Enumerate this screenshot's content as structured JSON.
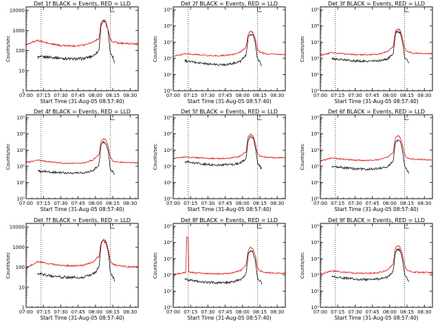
{
  "chart_data": [
    {
      "type": "line",
      "panel": "1f",
      "title": "Det 1f BLACK = Events, RED = LLD",
      "xlabel": "Start Time (31-Aug-05 08:57:40)",
      "ylabel": "Counts/sec",
      "x_tick_labels": [
        "07:00",
        "07:15",
        "07:30",
        "07:45",
        "08:00",
        "08:15",
        "08:30"
      ],
      "y_tick_labels": [
        "1",
        "10",
        "100",
        "1000",
        "10000"
      ],
      "xlim": [
        "07:00",
        "08:37"
      ],
      "ylim": [
        1,
        15000
      ],
      "y_scale": "log",
      "event_markers": [
        "07:13",
        "08:13"
      ],
      "series": [
        {
          "color": "#000000",
          "x": [
            "07:10",
            "07:20",
            "07:30",
            "07:40",
            "07:50",
            "07:58",
            "08:03",
            "08:05",
            "08:07",
            "08:09",
            "08:11",
            "08:13",
            "08:15",
            "08:17"
          ],
          "values": [
            47,
            48,
            42,
            38,
            40,
            55,
            100,
            2200,
            2900,
            2400,
            900,
            70,
            50,
            20
          ]
        },
        {
          "color": "#e00000",
          "x": [
            "07:00",
            "07:05",
            "07:10",
            "07:20",
            "07:30",
            "07:40",
            "07:50",
            "07:58",
            "08:03",
            "08:05",
            "08:07",
            "08:09",
            "08:11",
            "08:13",
            "08:15",
            "08:20",
            "08:30",
            "08:37"
          ],
          "values": [
            200,
            260,
            320,
            220,
            180,
            170,
            190,
            270,
            400,
            2600,
            3400,
            2800,
            1100,
            350,
            280,
            240,
            220,
            210
          ]
        }
      ]
    },
    {
      "type": "line",
      "panel": "2f",
      "title": "Det 2f BLACK = Events, RED = LLD",
      "xlabel": "Start Time (31-Aug-05 08:57:40)",
      "ylabel": "Counts/sec",
      "x_tick_labels": [
        "07:00",
        "07:15",
        "07:30",
        "07:45",
        "08:00",
        "08:15",
        "08:30"
      ],
      "y_tick_labels": [
        "10⁰",
        "10¹",
        "10²",
        "10³",
        "10⁴",
        "10⁵"
      ],
      "xlim": [
        "07:00",
        "08:37"
      ],
      "ylim": [
        1,
        150000
      ],
      "y_scale": "log",
      "event_markers": [
        "07:13",
        "08:13"
      ],
      "series": [
        {
          "color": "#000000",
          "x": [
            "07:10",
            "07:20",
            "07:30",
            "07:40",
            "07:50",
            "07:58",
            "08:03",
            "08:05",
            "08:07",
            "08:09",
            "08:11",
            "08:13",
            "08:15",
            "08:17"
          ],
          "values": [
            70,
            55,
            45,
            40,
            45,
            65,
            150,
            2500,
            3200,
            2800,
            900,
            80,
            60,
            30
          ]
        },
        {
          "color": "#e00000",
          "x": [
            "07:00",
            "07:05",
            "07:10",
            "07:20",
            "07:30",
            "07:40",
            "07:50",
            "07:58",
            "08:03",
            "08:05",
            "08:07",
            "08:09",
            "08:11",
            "08:13",
            "08:15",
            "08:20",
            "08:30",
            "08:37"
          ],
          "values": [
            140,
            160,
            200,
            170,
            150,
            145,
            160,
            240,
            500,
            3500,
            4800,
            4000,
            1600,
            350,
            240,
            190,
            180,
            175
          ]
        }
      ]
    },
    {
      "type": "line",
      "panel": "3f",
      "title": "Det 3f BLACK = Events, RED = LLD",
      "xlabel": "Start Time (31-Aug-05 08:57:40)",
      "ylabel": "Counts/sec",
      "x_tick_labels": [
        "07:00",
        "07:15",
        "07:30",
        "07:45",
        "08:00",
        "08:15",
        "08:30"
      ],
      "y_tick_labels": [
        "10⁰",
        "10¹",
        "10²",
        "10³",
        "10⁴",
        "10⁵"
      ],
      "xlim": [
        "07:00",
        "08:37"
      ],
      "ylim": [
        1,
        150000
      ],
      "y_scale": "log",
      "event_markers": [
        "07:13",
        "08:13"
      ],
      "series": [
        {
          "color": "#000000",
          "x": [
            "07:10",
            "07:20",
            "07:30",
            "07:40",
            "07:50",
            "07:58",
            "08:03",
            "08:05",
            "08:07",
            "08:09",
            "08:11",
            "08:13",
            "08:15",
            "08:17"
          ],
          "values": [
            95,
            80,
            70,
            65,
            70,
            90,
            180,
            3500,
            4500,
            3900,
            1200,
            100,
            80,
            45
          ]
        },
        {
          "color": "#e00000",
          "x": [
            "07:00",
            "07:05",
            "07:10",
            "07:20",
            "07:30",
            "07:40",
            "07:50",
            "07:58",
            "08:03",
            "08:05",
            "08:07",
            "08:09",
            "08:11",
            "08:13",
            "08:15",
            "08:20",
            "08:30",
            "08:37"
          ],
          "values": [
            160,
            180,
            230,
            190,
            170,
            165,
            180,
            260,
            550,
            4500,
            6500,
            5500,
            2000,
            400,
            260,
            210,
            200,
            195
          ]
        }
      ]
    },
    {
      "type": "line",
      "panel": "4f",
      "title": "Det 4f BLACK = Events, RED = LLD",
      "xlabel": "Start Time (31-Aug-05 08:57:40)",
      "ylabel": "Counts/sec",
      "x_tick_labels": [
        "07:00",
        "07:15",
        "07:30",
        "07:45",
        "08:00",
        "08:15",
        "08:30"
      ],
      "y_tick_labels": [
        "10⁰",
        "10¹",
        "10²",
        "10³",
        "10⁴",
        "10⁵"
      ],
      "xlim": [
        "07:00",
        "08:37"
      ],
      "ylim": [
        1,
        150000
      ],
      "y_scale": "log",
      "event_markers": [
        "07:13",
        "08:13"
      ],
      "series": [
        {
          "color": "#000000",
          "x": [
            "07:10",
            "07:20",
            "07:30",
            "07:40",
            "07:50",
            "07:58",
            "08:03",
            "08:05",
            "08:07",
            "08:09",
            "08:11",
            "08:13",
            "08:15",
            "08:17"
          ],
          "values": [
            50,
            45,
            40,
            38,
            40,
            55,
            120,
            2500,
            3200,
            2700,
            900,
            60,
            45,
            25
          ]
        },
        {
          "color": "#e00000",
          "x": [
            "07:00",
            "07:05",
            "07:10",
            "07:20",
            "07:30",
            "07:40",
            "07:50",
            "07:58",
            "08:03",
            "08:05",
            "08:07",
            "08:09",
            "08:11",
            "08:13",
            "08:15",
            "08:20",
            "08:30",
            "08:37"
          ],
          "values": [
            170,
            200,
            250,
            190,
            160,
            150,
            165,
            250,
            500,
            3800,
            5000,
            4200,
            1600,
            350,
            220,
            180,
            170,
            165
          ]
        }
      ]
    },
    {
      "type": "line",
      "panel": "5f",
      "title": "Det 5f BLACK = Events, RED = LLD",
      "xlabel": "Start Time (31-Aug-05 08:57:40)",
      "ylabel": "Counts/sec",
      "x_tick_labels": [
        "07:00",
        "07:15",
        "07:30",
        "07:45",
        "08:00",
        "08:15",
        "08:30"
      ],
      "y_tick_labels": [
        "10⁰",
        "10¹",
        "10²",
        "10³",
        "10⁴",
        "10⁵"
      ],
      "xlim": [
        "07:00",
        "08:37"
      ],
      "ylim": [
        1,
        150000
      ],
      "y_scale": "log",
      "event_markers": [
        "07:13",
        "08:13"
      ],
      "series": [
        {
          "color": "#000000",
          "x": [
            "07:10",
            "07:20",
            "07:30",
            "07:40",
            "07:50",
            "07:58",
            "08:03",
            "08:05",
            "08:07",
            "08:09",
            "08:11",
            "08:13",
            "08:15",
            "08:17"
          ],
          "values": [
            190,
            150,
            130,
            120,
            125,
            160,
            300,
            5000,
            6500,
            5500,
            1800,
            150,
            100,
            55
          ]
        },
        {
          "color": "#e00000",
          "x": [
            "07:00",
            "07:05",
            "07:10",
            "07:20",
            "07:30",
            "07:40",
            "07:50",
            "07:58",
            "08:03",
            "08:05",
            "08:07",
            "08:09",
            "08:11",
            "08:13",
            "08:15",
            "08:20",
            "08:30",
            "08:37"
          ],
          "values": [
            300,
            330,
            380,
            340,
            310,
            300,
            320,
            420,
            800,
            7000,
            9500,
            8000,
            2500,
            600,
            420,
            360,
            340,
            330
          ]
        }
      ]
    },
    {
      "type": "line",
      "panel": "6f",
      "title": "Det 6f BLACK = Events, RED = LLD",
      "xlabel": "Start Time (31-Aug-05 08:57:40)",
      "ylabel": "Counts/sec",
      "x_tick_labels": [
        "07:00",
        "07:15",
        "07:30",
        "07:45",
        "08:00",
        "08:15",
        "08:30"
      ],
      "y_tick_labels": [
        "10⁰",
        "10¹",
        "10²",
        "10³",
        "10⁴",
        "10⁵"
      ],
      "xlim": [
        "07:00",
        "08:37"
      ],
      "ylim": [
        1,
        150000
      ],
      "y_scale": "log",
      "event_markers": [
        "07:13",
        "08:13"
      ],
      "series": [
        {
          "color": "#000000",
          "x": [
            "07:10",
            "07:20",
            "07:30",
            "07:40",
            "07:50",
            "07:58",
            "08:03",
            "08:05",
            "08:07",
            "08:09",
            "08:11",
            "08:13",
            "08:15",
            "08:17"
          ],
          "values": [
            95,
            80,
            70,
            65,
            72,
            95,
            200,
            3000,
            4000,
            3400,
            1100,
            90,
            60,
            35
          ]
        },
        {
          "color": "#e00000",
          "x": [
            "07:00",
            "07:05",
            "07:10",
            "07:20",
            "07:30",
            "07:40",
            "07:50",
            "07:58",
            "08:03",
            "08:05",
            "08:07",
            "08:09",
            "08:11",
            "08:13",
            "08:15",
            "08:20",
            "08:30",
            "08:37"
          ],
          "values": [
            220,
            260,
            330,
            270,
            240,
            230,
            250,
            360,
            700,
            5500,
            7500,
            6500,
            2200,
            500,
            330,
            280,
            260,
            250
          ]
        }
      ]
    },
    {
      "type": "line",
      "panel": "7f",
      "title": "Det 7f BLACK = Events, RED = LLD",
      "xlabel": "Start Time (31-Aug-05 08:57:40)",
      "ylabel": "Counts/sec",
      "x_tick_labels": [
        "07:00",
        "07:15",
        "07:30",
        "07:45",
        "08:00",
        "08:15",
        "08:30"
      ],
      "y_tick_labels": [
        "1",
        "10",
        "100",
        "1000",
        "10000"
      ],
      "xlim": [
        "07:00",
        "08:37"
      ],
      "ylim": [
        1,
        15000
      ],
      "y_scale": "log",
      "event_markers": [
        "07:13",
        "08:13"
      ],
      "series": [
        {
          "color": "#000000",
          "x": [
            "07:10",
            "07:20",
            "07:30",
            "07:40",
            "07:50",
            "07:58",
            "08:03",
            "08:05",
            "08:07",
            "08:09",
            "08:11",
            "08:13",
            "08:15",
            "08:17"
          ],
          "values": [
            48,
            38,
            32,
            30,
            32,
            45,
            90,
            1600,
            2000,
            1700,
            600,
            50,
            35,
            18
          ]
        },
        {
          "color": "#e00000",
          "x": [
            "07:00",
            "07:05",
            "07:10",
            "07:20",
            "07:30",
            "07:40",
            "07:50",
            "07:58",
            "08:03",
            "08:05",
            "08:07",
            "08:09",
            "08:11",
            "08:13",
            "08:15",
            "08:20",
            "08:30",
            "08:37"
          ],
          "values": [
            90,
            130,
            190,
            150,
            120,
            115,
            125,
            180,
            350,
            1800,
            2300,
            2000,
            800,
            200,
            140,
            115,
            105,
            100
          ]
        }
      ]
    },
    {
      "type": "line",
      "panel": "8f",
      "title": "Det 8f BLACK = Events, RED = LLD",
      "xlabel": "Start Time (31-Aug-05 08:57:40)",
      "ylabel": "Counts/sec",
      "x_tick_labels": [
        "07:00",
        "07:15",
        "07:30",
        "07:45",
        "08:00",
        "08:15",
        "08:30"
      ],
      "y_tick_labels": [
        "10⁰",
        "10¹",
        "10²",
        "10³",
        "10⁴",
        "10⁵"
      ],
      "xlim": [
        "07:00",
        "08:37"
      ],
      "ylim": [
        1,
        150000
      ],
      "y_scale": "log",
      "event_markers": [
        "07:13",
        "08:13"
      ],
      "series": [
        {
          "color": "#000000",
          "x": [
            "07:10",
            "07:20",
            "07:30",
            "07:40",
            "07:50",
            "07:58",
            "08:03",
            "08:05",
            "08:07",
            "08:09",
            "08:11",
            "08:13",
            "08:15",
            "08:17"
          ],
          "values": [
            55,
            40,
            35,
            32,
            35,
            50,
            110,
            2200,
            2900,
            2500,
            800,
            60,
            45,
            25
          ]
        },
        {
          "color": "#e00000",
          "x": [
            "07:00",
            "07:05",
            "07:10",
            "07:11",
            "07:11.5",
            "07:12",
            "07:13",
            "07:13.5",
            "07:20",
            "07:30",
            "07:40",
            "07:50",
            "07:58",
            "08:03",
            "08:05",
            "08:07",
            "08:09",
            "08:11",
            "08:13",
            "08:15",
            "08:20",
            "08:30",
            "08:37"
          ],
          "values": [
            110,
            120,
            140,
            150,
            20000,
            22000,
            20000,
            150,
            130,
            120,
            115,
            125,
            180,
            400,
            3500,
            5000,
            4200,
            1500,
            300,
            180,
            140,
            130,
            125
          ]
        }
      ]
    },
    {
      "type": "line",
      "panel": "9f",
      "title": "Det 9f BLACK = Events, RED = LLD",
      "xlabel": "Start Time (31-Aug-05 08:57:40)",
      "ylabel": "Counts/sec",
      "x_tick_labels": [
        "07:00",
        "07:15",
        "07:30",
        "07:45",
        "08:00",
        "08:15",
        "08:30"
      ],
      "y_tick_labels": [
        "10⁰",
        "10¹",
        "10²",
        "10³",
        "10⁴",
        "10⁵"
      ],
      "xlim": [
        "07:00",
        "08:37"
      ],
      "ylim": [
        1,
        150000
      ],
      "y_scale": "log",
      "event_markers": [
        "07:13",
        "08:13"
      ],
      "series": [
        {
          "color": "#000000",
          "x": [
            "07:10",
            "07:20",
            "07:30",
            "07:40",
            "07:50",
            "07:58",
            "08:03",
            "08:05",
            "08:07",
            "08:09",
            "08:11",
            "08:13",
            "08:15",
            "08:17"
          ],
          "values": [
            80,
            65,
            55,
            52,
            55,
            75,
            160,
            3000,
            4000,
            3400,
            1100,
            90,
            60,
            35
          ]
        },
        {
          "color": "#e00000",
          "x": [
            "07:00",
            "07:05",
            "07:10",
            "07:20",
            "07:30",
            "07:40",
            "07:50",
            "07:58",
            "08:03",
            "08:05",
            "08:07",
            "08:09",
            "08:11",
            "08:13",
            "08:15",
            "08:20",
            "08:30",
            "08:37"
          ],
          "values": [
            120,
            140,
            180,
            150,
            130,
            125,
            135,
            200,
            450,
            4500,
            6500,
            5500,
            1800,
            350,
            200,
            150,
            140,
            135
          ]
        }
      ]
    }
  ]
}
